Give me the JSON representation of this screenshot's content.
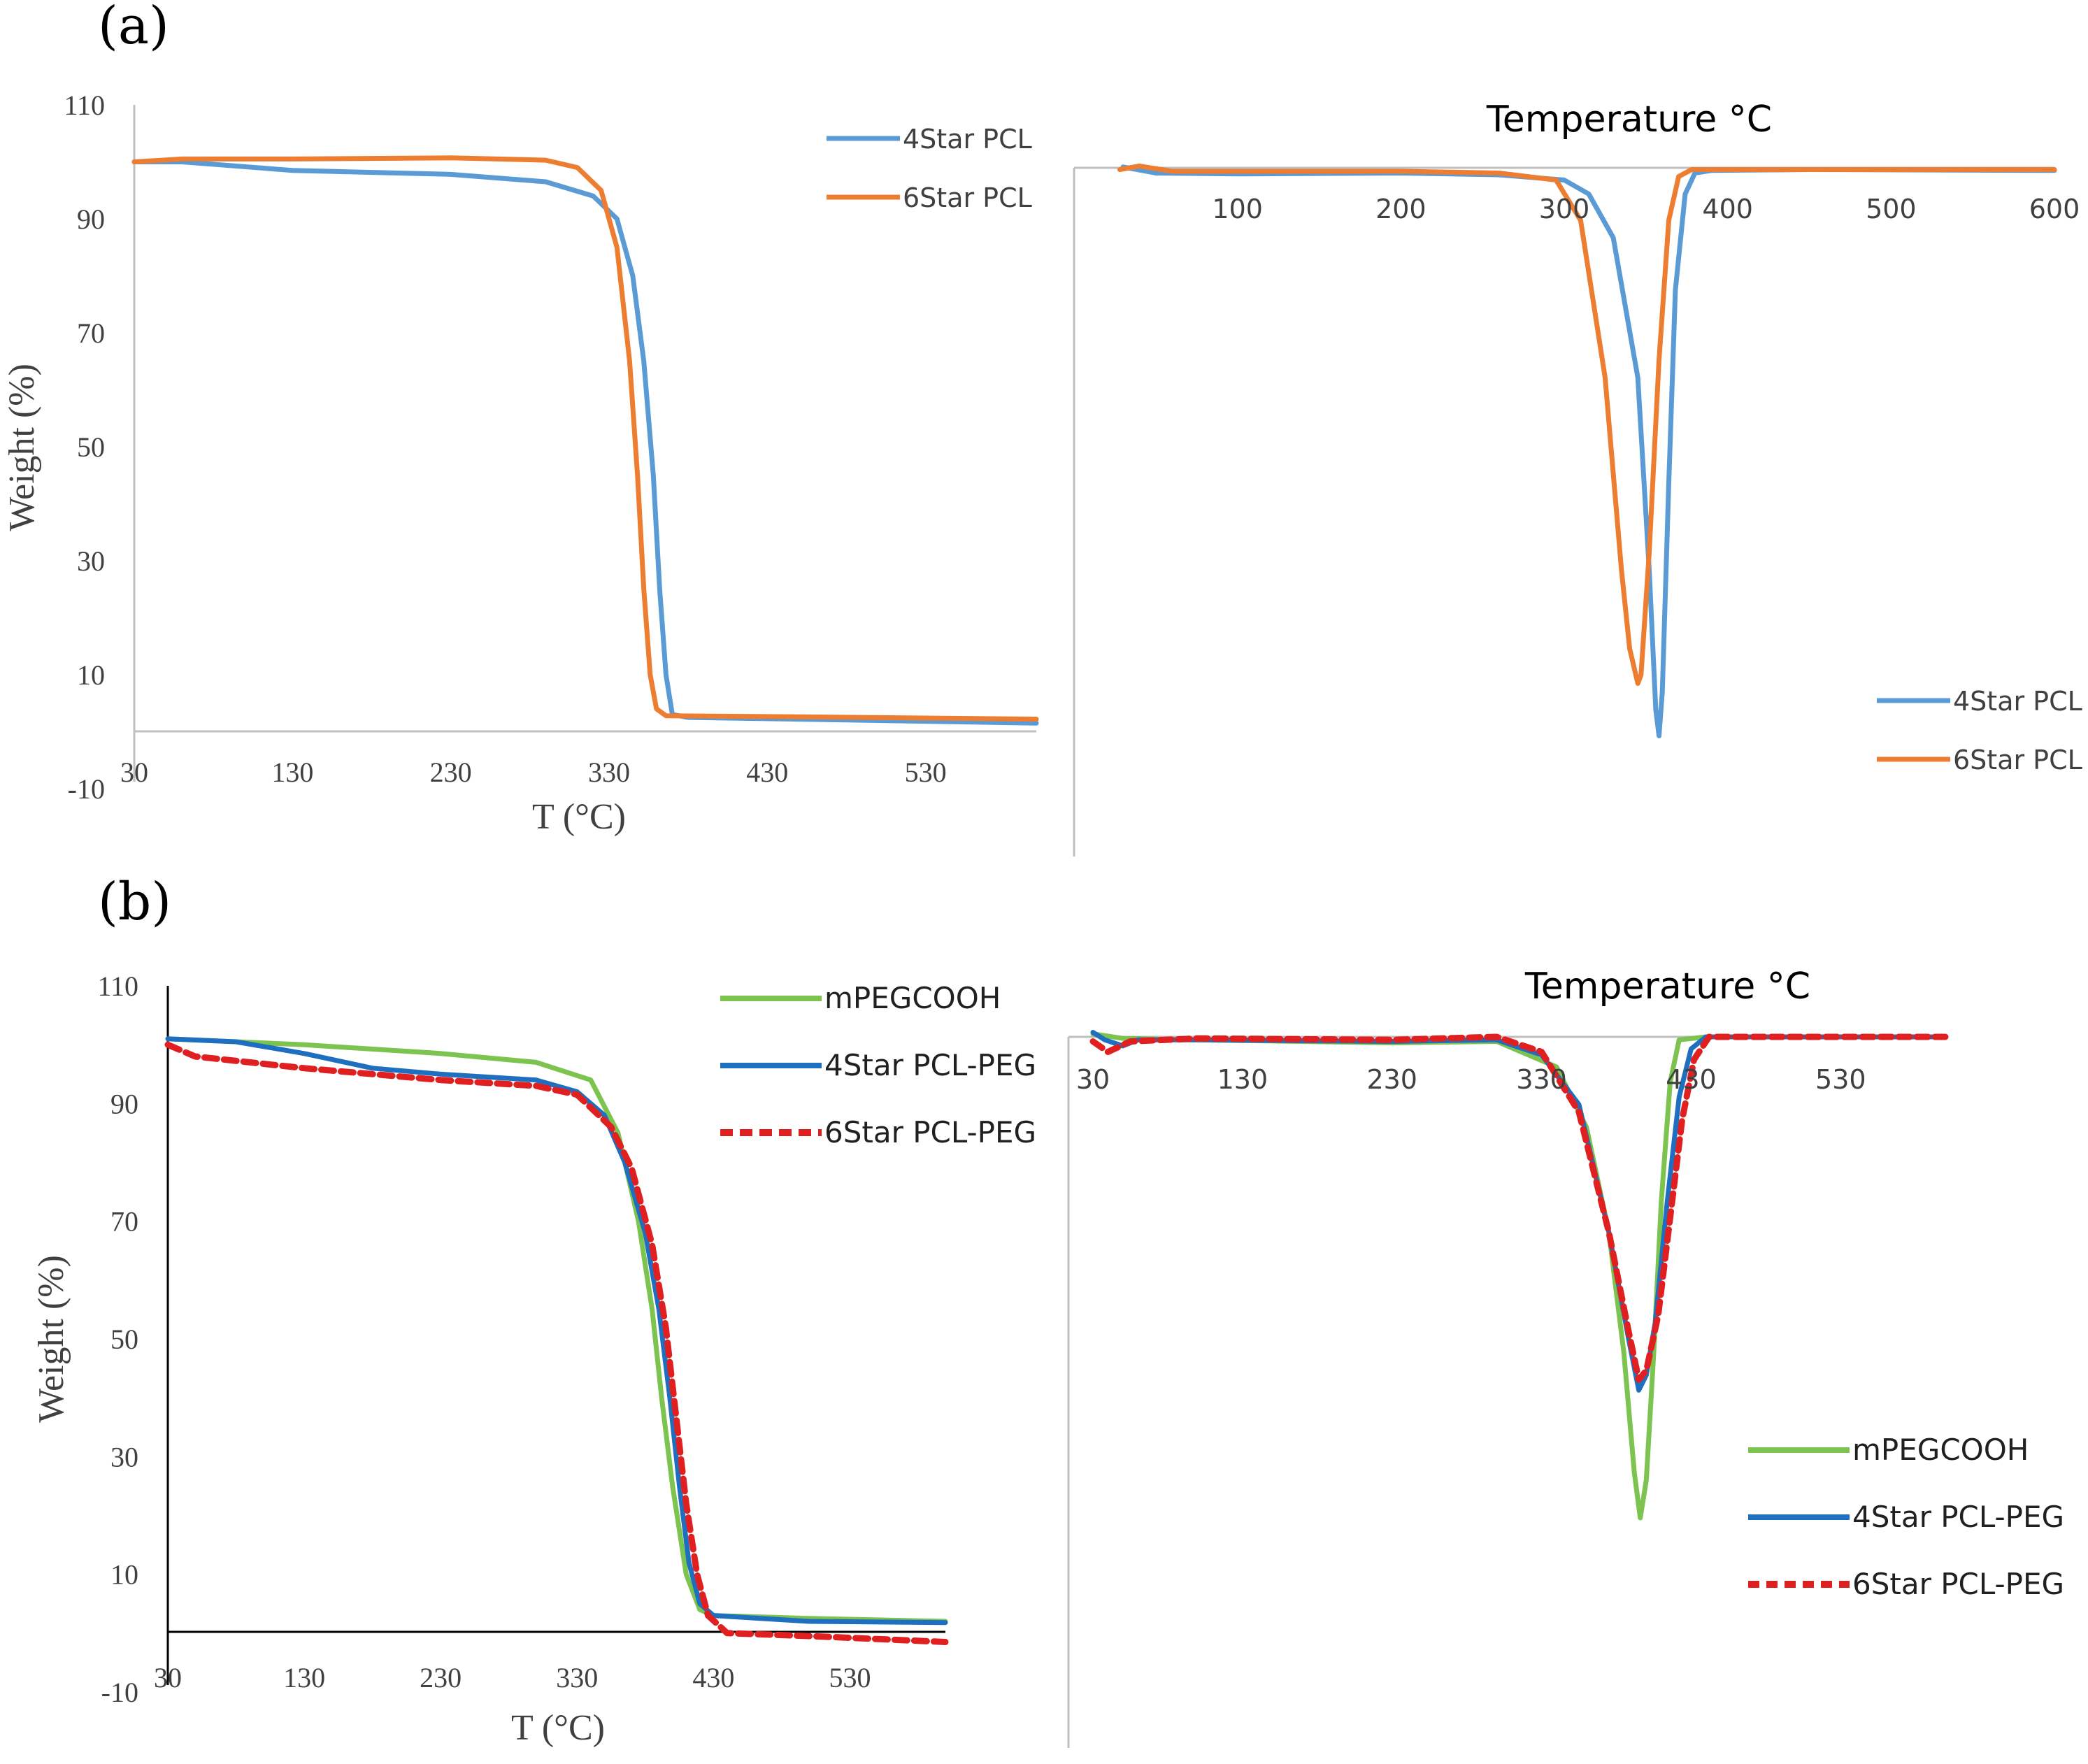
{
  "figure": {
    "label_a": "(a)",
    "label_b": "(b)"
  },
  "chart_data": [
    {
      "id": "a_tga",
      "type": "line",
      "xlabel": "T (°C)",
      "ylabel": "Weight (%)",
      "xlim": [
        30,
        600
      ],
      "ylim": [
        -10,
        110
      ],
      "xticks": [
        "30",
        "130",
        "230",
        "330",
        "430",
        "530"
      ],
      "xtick_values": [
        30,
        130,
        230,
        330,
        430,
        530
      ],
      "yticks": [
        "110",
        "90",
        "70",
        "50",
        "30",
        "10",
        "-10"
      ],
      "ytick_values": [
        110,
        90,
        70,
        50,
        30,
        10,
        -10
      ],
      "legend_position": "top-right",
      "series": [
        {
          "name": "4Star PCL",
          "color": "#5b9bd5",
          "dash": "",
          "points": [
            [
              30,
              100
            ],
            [
              60,
              100
            ],
            [
              130,
              98.5
            ],
            [
              230,
              97.8
            ],
            [
              290,
              96.5
            ],
            [
              320,
              94
            ],
            [
              335,
              90
            ],
            [
              345,
              80
            ],
            [
              352,
              65
            ],
            [
              358,
              45
            ],
            [
              362,
              25
            ],
            [
              366,
              10
            ],
            [
              370,
              3
            ],
            [
              380,
              2.5
            ],
            [
              450,
              2.2
            ],
            [
              600,
              1.5
            ]
          ]
        },
        {
          "name": "6Star PCL",
          "color": "#ed7d31",
          "dash": "",
          "points": [
            [
              30,
              100
            ],
            [
              60,
              100.5
            ],
            [
              130,
              100.5
            ],
            [
              230,
              100.7
            ],
            [
              290,
              100.3
            ],
            [
              310,
              99
            ],
            [
              325,
              95
            ],
            [
              335,
              85
            ],
            [
              343,
              65
            ],
            [
              348,
              45
            ],
            [
              352,
              25
            ],
            [
              356,
              10
            ],
            [
              360,
              4
            ],
            [
              366,
              2.8
            ],
            [
              450,
              2.6
            ],
            [
              600,
              2.2
            ]
          ]
        }
      ]
    },
    {
      "id": "a_dtg",
      "type": "line",
      "title": "Temperature °C",
      "xlim": [
        0,
        600
      ],
      "xticks": [
        "100",
        "200",
        "300",
        "400",
        "500",
        "600"
      ],
      "xtick_values": [
        100,
        200,
        300,
        400,
        500,
        600
      ],
      "legend_position": "bottom-right",
      "series": [
        {
          "name": "4Star PCL",
          "color": "#5b9bd5",
          "dash": "",
          "points": [
            [
              30,
              0.5
            ],
            [
              50,
              -3
            ],
            [
              100,
              -3.5
            ],
            [
              200,
              -3
            ],
            [
              260,
              -4
            ],
            [
              300,
              -7
            ],
            [
              315,
              -15
            ],
            [
              330,
              -40
            ],
            [
              345,
              -120
            ],
            [
              352,
              -230
            ],
            [
              356,
              -310
            ],
            [
              358,
              -325
            ],
            [
              360,
              -300
            ],
            [
              364,
              -180
            ],
            [
              368,
              -70
            ],
            [
              374,
              -15
            ],
            [
              380,
              -3
            ],
            [
              390,
              -1.5
            ],
            [
              450,
              -1
            ],
            [
              600,
              -1.5
            ]
          ]
        },
        {
          "name": "6Star PCL",
          "color": "#ed7d31",
          "dash": "",
          "points": [
            [
              28,
              -1
            ],
            [
              40,
              1
            ],
            [
              60,
              -2
            ],
            [
              100,
              -2
            ],
            [
              200,
              -2
            ],
            [
              260,
              -3
            ],
            [
              295,
              -7
            ],
            [
              310,
              -30
            ],
            [
              325,
              -120
            ],
            [
              335,
              -230
            ],
            [
              340,
              -275
            ],
            [
              345,
              -295
            ],
            [
              347,
              -290
            ],
            [
              352,
              -220
            ],
            [
              358,
              -110
            ],
            [
              364,
              -30
            ],
            [
              370,
              -5
            ],
            [
              378,
              -1
            ],
            [
              450,
              -1
            ],
            [
              600,
              -1
            ]
          ]
        }
      ]
    },
    {
      "id": "b_tga",
      "type": "line",
      "xlabel": "T (°C)",
      "ylabel": "Weight (%)",
      "xlim": [
        30,
        600
      ],
      "ylim": [
        -10,
        110
      ],
      "xticks": [
        "30",
        "130",
        "230",
        "330",
        "430",
        "530"
      ],
      "xtick_values": [
        30,
        130,
        230,
        330,
        430,
        530
      ],
      "yticks": [
        "110",
        "90",
        "70",
        "50",
        "30",
        "10",
        "-10"
      ],
      "ytick_values": [
        110,
        90,
        70,
        50,
        30,
        10,
        -10
      ],
      "legend_position": "top-right",
      "series": [
        {
          "name": "mPEGCOOH",
          "color": "#7dc34f",
          "dash": "",
          "points": [
            [
              30,
              101
            ],
            [
              130,
              100
            ],
            [
              230,
              98.5
            ],
            [
              300,
              97
            ],
            [
              340,
              94
            ],
            [
              360,
              85
            ],
            [
              375,
              70
            ],
            [
              385,
              55
            ],
            [
              392,
              40
            ],
            [
              400,
              25
            ],
            [
              410,
              10
            ],
            [
              420,
              4
            ],
            [
              430,
              3
            ],
            [
              500,
              2.5
            ],
            [
              600,
              2
            ]
          ]
        },
        {
          "name": "4Star PCL-PEG",
          "color": "#1f6fc0",
          "dash": "",
          "points": [
            [
              30,
              101
            ],
            [
              80,
              100.5
            ],
            [
              130,
              98.5
            ],
            [
              180,
              96
            ],
            [
              230,
              95
            ],
            [
              300,
              94
            ],
            [
              330,
              92
            ],
            [
              350,
              88
            ],
            [
              365,
              80
            ],
            [
              380,
              68
            ],
            [
              390,
              55
            ],
            [
              398,
              40
            ],
            [
              405,
              25
            ],
            [
              412,
              12
            ],
            [
              420,
              5
            ],
            [
              430,
              3
            ],
            [
              500,
              2
            ],
            [
              600,
              1.8
            ]
          ]
        },
        {
          "name": "6Star PCL-PEG",
          "color": "#e02020",
          "dash": "18 10",
          "points": [
            [
              30,
              100
            ],
            [
              50,
              98
            ],
            [
              130,
              96
            ],
            [
              230,
              94
            ],
            [
              300,
              93
            ],
            [
              330,
              91.5
            ],
            [
              355,
              86
            ],
            [
              370,
              79
            ],
            [
              385,
              66
            ],
            [
              395,
              52
            ],
            [
              402,
              38
            ],
            [
              410,
              22
            ],
            [
              418,
              10
            ],
            [
              426,
              3
            ],
            [
              440,
              0
            ],
            [
              500,
              -0.5
            ],
            [
              600,
              -1.5
            ]
          ]
        }
      ]
    },
    {
      "id": "b_dtg",
      "type": "line",
      "title": "Temperature °C",
      "xlim": [
        30,
        600
      ],
      "xticks": [
        "30",
        "130",
        "230",
        "330",
        "430",
        "530"
      ],
      "xtick_values": [
        30,
        130,
        230,
        330,
        430,
        530
      ],
      "legend_position": "bottom-right",
      "series": [
        {
          "name": "mPEGCOOH",
          "color": "#7dc34f",
          "dash": "",
          "points": [
            [
              30,
              2
            ],
            [
              50,
              -1
            ],
            [
              100,
              -2
            ],
            [
              230,
              -4
            ],
            [
              300,
              -3
            ],
            [
              340,
              -20
            ],
            [
              360,
              -60
            ],
            [
              375,
              -130
            ],
            [
              385,
              -210
            ],
            [
              392,
              -290
            ],
            [
              396,
              -320
            ],
            [
              400,
              -295
            ],
            [
              405,
              -210
            ],
            [
              410,
              -110
            ],
            [
              416,
              -30
            ],
            [
              422,
              -2
            ],
            [
              440,
              0
            ],
            [
              600,
              0
            ]
          ]
        },
        {
          "name": "4Star PCL-PEG",
          "color": "#1f6fc0",
          "dash": "",
          "points": [
            [
              30,
              3
            ],
            [
              38,
              -2
            ],
            [
              50,
              -6
            ],
            [
              60,
              -2
            ],
            [
              100,
              -2
            ],
            [
              230,
              -3
            ],
            [
              300,
              -2
            ],
            [
              330,
              -12
            ],
            [
              355,
              -45
            ],
            [
              375,
              -130
            ],
            [
              388,
              -200
            ],
            [
              395,
              -235
            ],
            [
              400,
              -225
            ],
            [
              406,
              -190
            ],
            [
              414,
              -110
            ],
            [
              422,
              -40
            ],
            [
              430,
              -8
            ],
            [
              440,
              0
            ],
            [
              600,
              0
            ]
          ]
        },
        {
          "name": "6Star PCL-PEG",
          "color": "#e02020",
          "dash": "16 10",
          "points": [
            [
              30,
              -3
            ],
            [
              40,
              -10
            ],
            [
              55,
              -3
            ],
            [
              100,
              -1
            ],
            [
              230,
              -2
            ],
            [
              300,
              0
            ],
            [
              330,
              -10
            ],
            [
              355,
              -50
            ],
            [
              375,
              -130
            ],
            [
              388,
              -195
            ],
            [
              395,
              -228
            ],
            [
              400,
              -222
            ],
            [
              408,
              -185
            ],
            [
              416,
              -120
            ],
            [
              424,
              -55
            ],
            [
              432,
              -15
            ],
            [
              442,
              0
            ],
            [
              600,
              0
            ]
          ]
        }
      ]
    }
  ]
}
